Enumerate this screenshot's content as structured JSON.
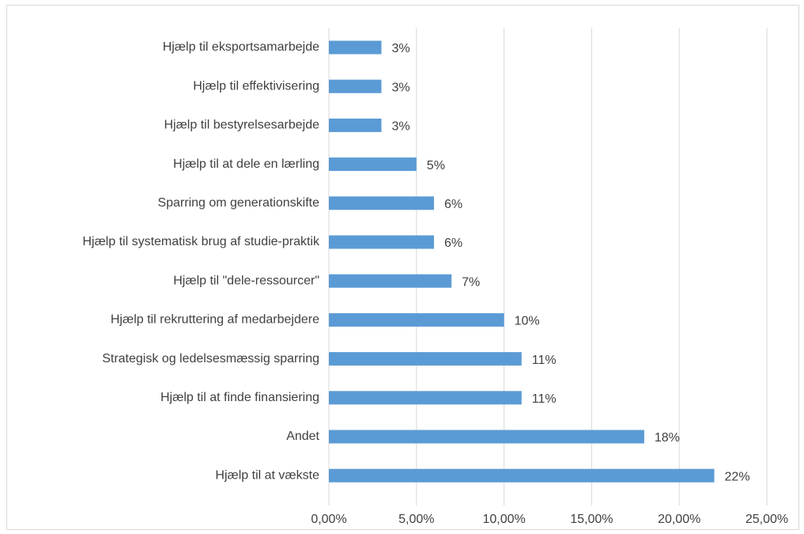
{
  "chart_data": {
    "type": "bar",
    "orientation": "horizontal",
    "categories": [
      "Hjælp til eksportsamarbejde",
      "Hjælp til effektivisering",
      "Hjælp til bestyrelsesarbejde",
      "Hjælp til at dele en lærling",
      "Sparring om generationskifte",
      "Hjælp til systematisk brug af studie-praktik",
      "Hjælp til \"dele-ressourcer\"",
      "Hjælp til rekruttering af medarbejdere",
      "Strategisk og ledelsesmæssig sparring",
      "Hjælp til at finde finansiering",
      "Andet",
      "Hjælp til at vækste"
    ],
    "values": [
      3,
      3,
      3,
      5,
      6,
      6,
      7,
      10,
      11,
      11,
      18,
      22
    ],
    "data_labels": [
      "3%",
      "3%",
      "3%",
      "5%",
      "6%",
      "6%",
      "7%",
      "10%",
      "11%",
      "11%",
      "18%",
      "22%"
    ],
    "x_ticks": [
      "0,00%",
      "5,00%",
      "10,00%",
      "15,00%",
      "20,00%",
      "25,00%"
    ],
    "xlim": [
      0,
      25
    ],
    "title": "",
    "xlabel": "",
    "ylabel": "",
    "grid": "vertical",
    "legend": "none",
    "bar_color": "#5b9bd5",
    "grid_color": "#d9d9d9"
  }
}
